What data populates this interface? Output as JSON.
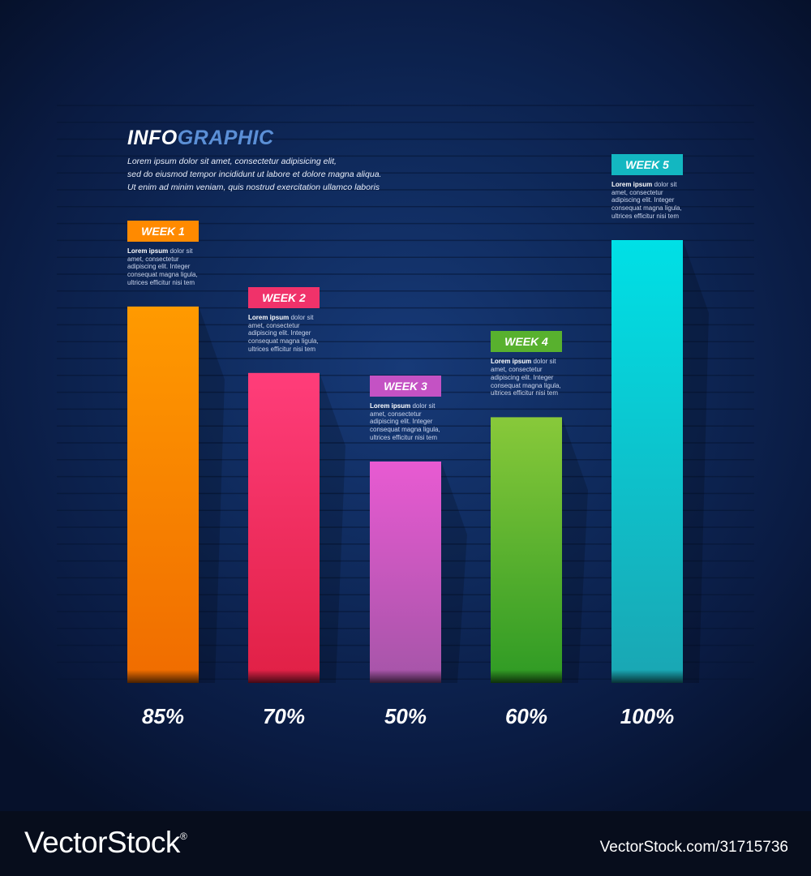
{
  "title": {
    "part1": "INFO",
    "part2": "GRAPHIC"
  },
  "subtitle_lines": [
    "Lorem ipsum dolor sit amet, consectetur adipisicing elit,",
    "sed do eiusmod tempor incididunt ut labore et dolore magna aliqua.",
    "Ut enim ad minim veniam, quis nostrud exercitation ullamco laboris"
  ],
  "description": {
    "bold": "Lorem ipsum",
    "rest": " dolor sit amet, consectetur adipiscing elit. Integer consequat magna ligula, ultrices efficitur nisi tem"
  },
  "chart_data": {
    "type": "bar",
    "categories": [
      "WEEK 1",
      "WEEK 2",
      "WEEK 3",
      "WEEK 4",
      "WEEK 5"
    ],
    "values": [
      85,
      70,
      50,
      60,
      100
    ],
    "value_labels": [
      "85%",
      "70%",
      "50%",
      "60%",
      "100%"
    ],
    "unit": "%",
    "ylim": [
      0,
      100
    ],
    "colors": [
      {
        "top": "#ff9a00",
        "bottom": "#f06c00",
        "label": "#ff8a00"
      },
      {
        "top": "#ff3d7a",
        "bottom": "#e02045",
        "label": "#f0326a"
      },
      {
        "top": "#e85ad2",
        "bottom": "#a555a8",
        "label": "#c452c4"
      },
      {
        "top": "#88c93a",
        "bottom": "#2e9a24",
        "label": "#58b12e"
      },
      {
        "top": "#00e0e6",
        "bottom": "#1aa6b3",
        "label": "#13b7c1"
      }
    ]
  },
  "watermark": {
    "logo": "VectorStock",
    "reg": "®",
    "id": "VectorStock.com/31715736"
  }
}
